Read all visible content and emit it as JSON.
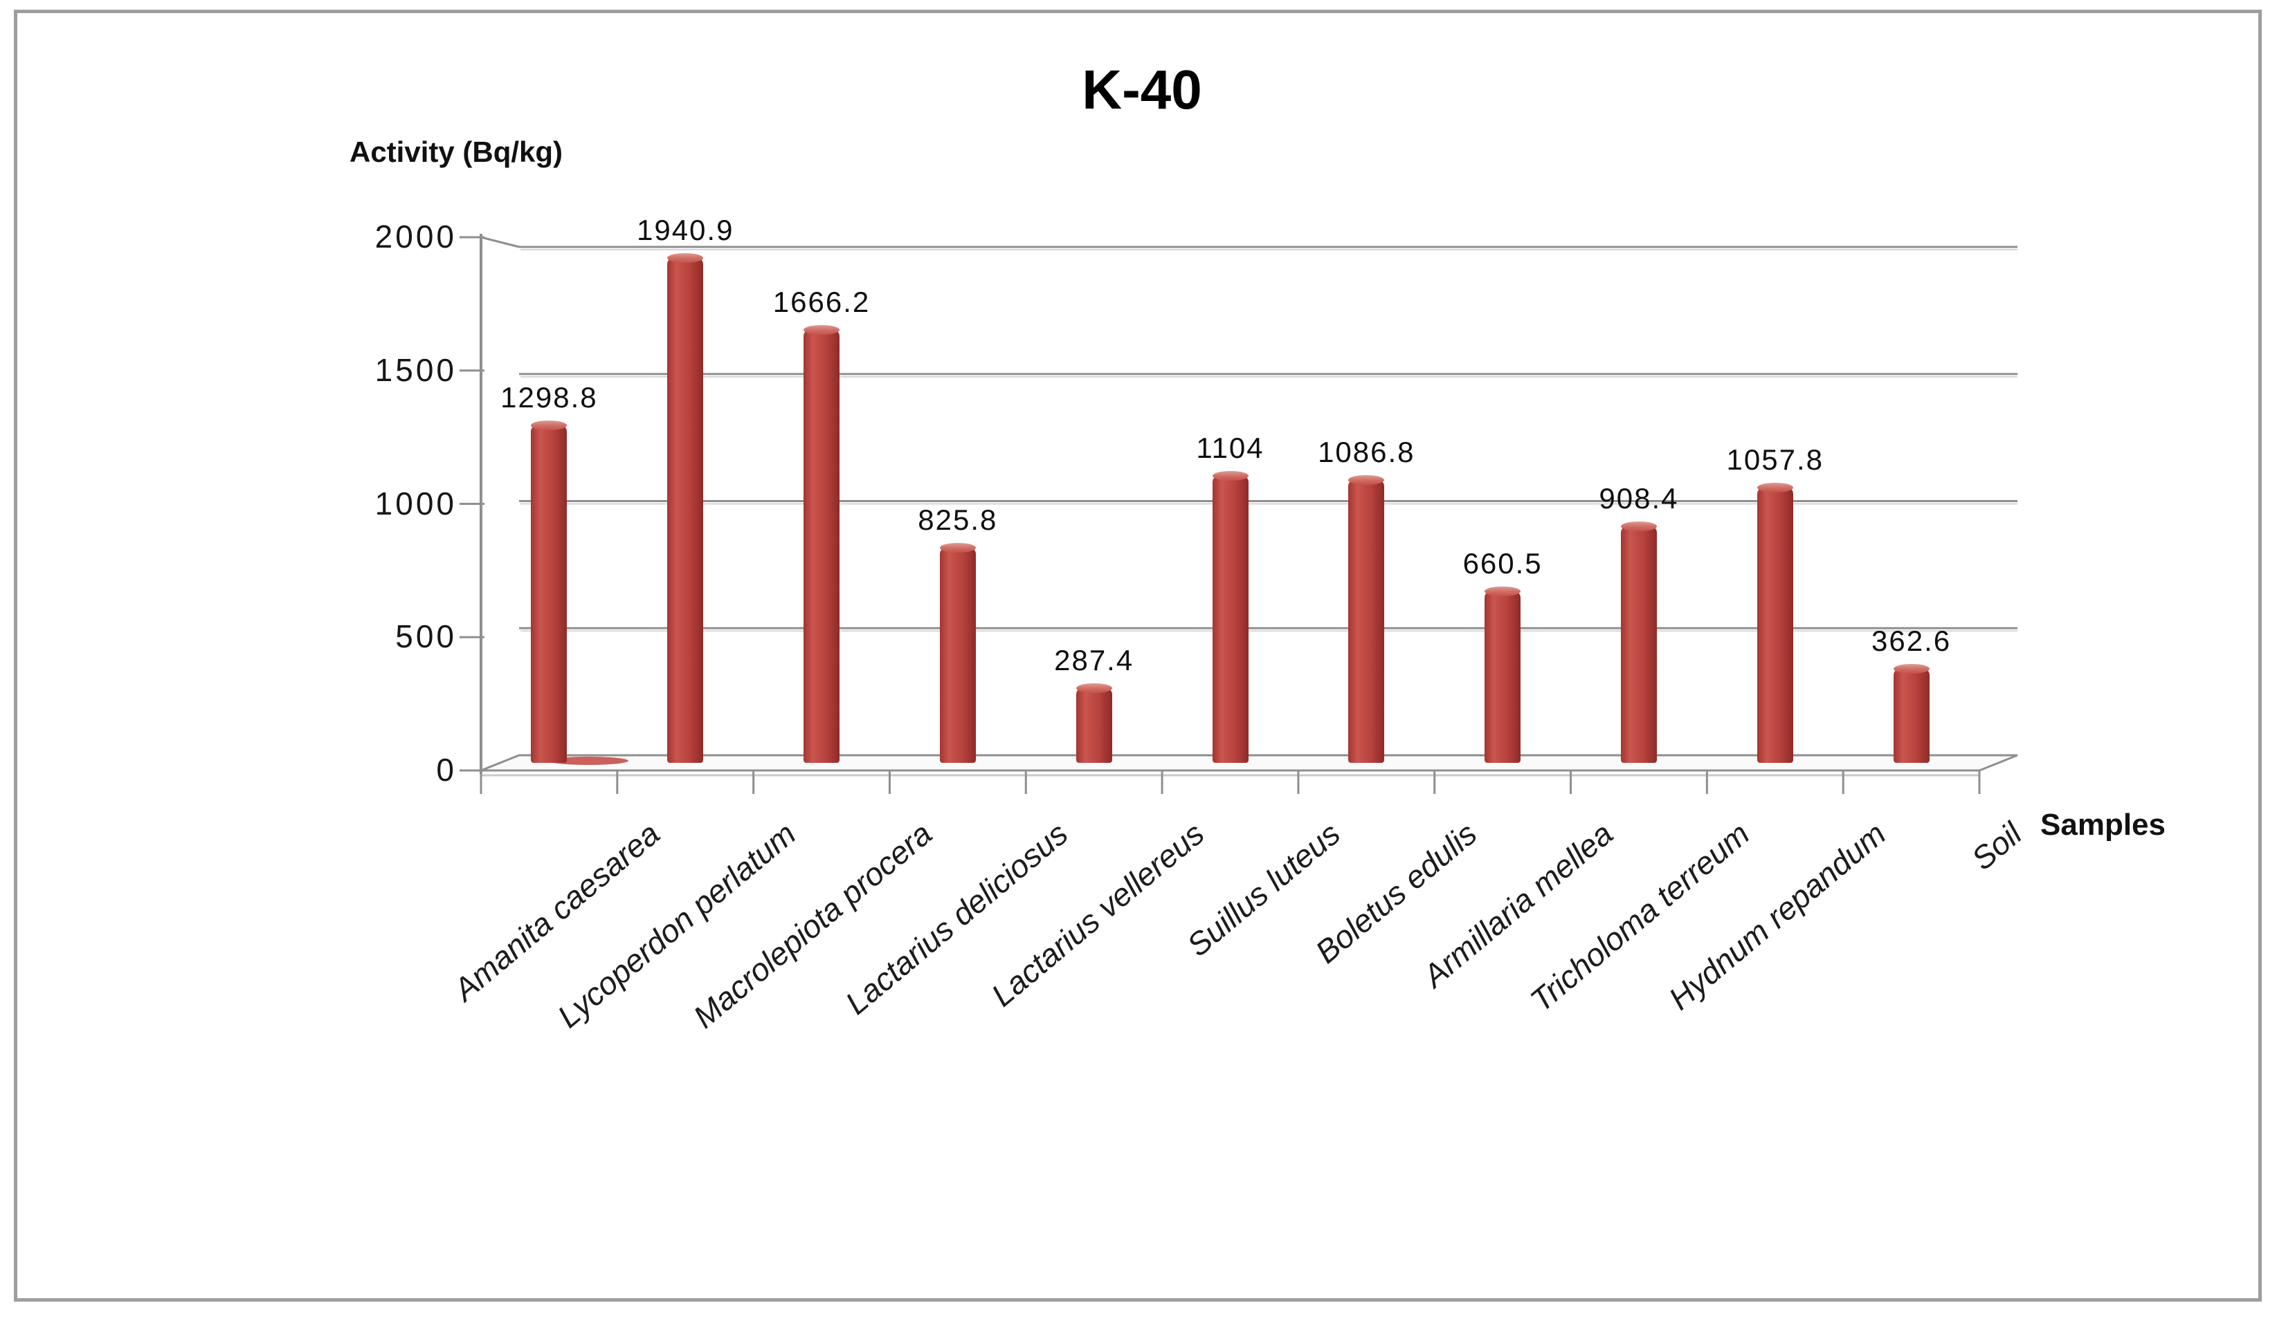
{
  "title": "K-40",
  "y_axis_label": "Activity (Bq/kg)",
  "x_axis_label": "Samples",
  "colors": {
    "bar_main": "#b8423e",
    "bar_light": "#ca564f",
    "bar_dark": "#8e2b28",
    "bar_cap": "#d58d87",
    "grid": "#8f8f8f",
    "grid_highlight": "#d6d6d6",
    "border": "#9e9e9e",
    "text": "#1a1a1a"
  },
  "chart_data": {
    "type": "bar",
    "style": "3d-cylinder",
    "title": "K-40",
    "xlabel": "Samples",
    "ylabel": "Activity (Bq/kg)",
    "categories": [
      "Amanita caesarea",
      "Lycoperdon perlatum",
      "Macrolepiota procera",
      "Lactarius deliciosus",
      "Lactarius vellereus",
      "Suillus luteus",
      "Boletus edulis",
      "Armillaria mellea",
      "Tricholoma terreum",
      "Hydnum repandum",
      "Soil"
    ],
    "values": [
      1298.8,
      1940.9,
      1666.2,
      825.8,
      287.4,
      1104,
      1086.8,
      660.5,
      908.4,
      1057.8,
      362.6
    ],
    "data_labels": [
      "1298.8",
      "1940.9",
      "1666.2",
      "825.8",
      "287.4",
      "1104",
      "1086.8",
      "660.5",
      "908.4",
      "1057.8",
      "362.6"
    ],
    "ylim": [
      0,
      2000
    ],
    "yticks": [
      0,
      500,
      1000,
      1500,
      2000
    ],
    "grid": true,
    "legend": false,
    "series_color": "brick-red"
  }
}
